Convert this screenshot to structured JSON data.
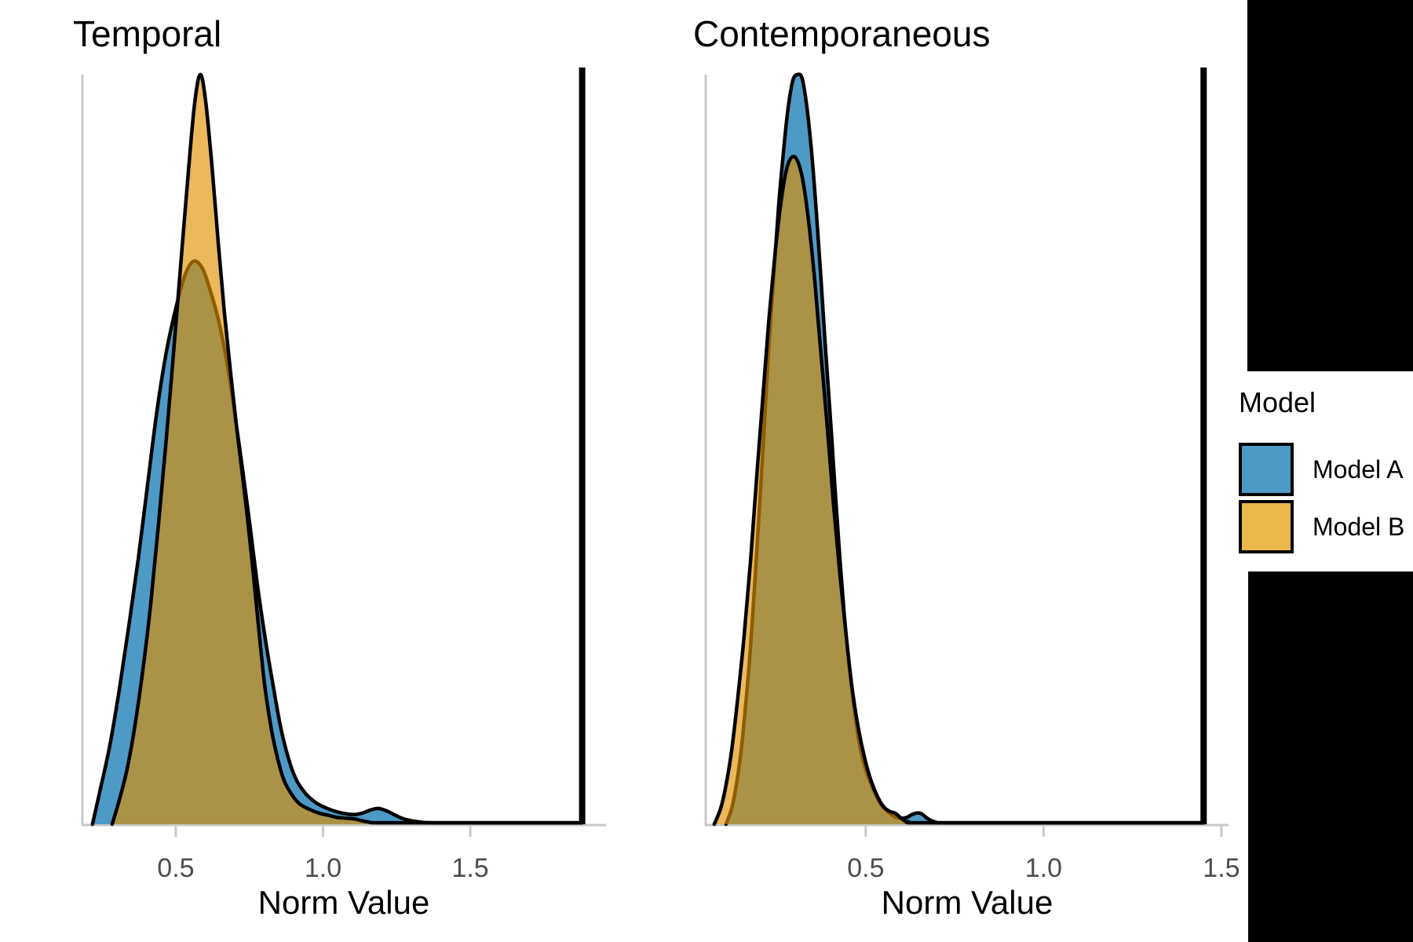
{
  "page": {
    "background": "#FFFFFF"
  },
  "legend": {
    "title": "Model",
    "items": [
      {
        "label": "Model A",
        "color": "#4D9AC6"
      },
      {
        "label": "Model B",
        "color": "#EBB84C"
      }
    ]
  },
  "style": {
    "axis_line_color": "#C9C9C9",
    "tick_label_color": "#4D4D4D",
    "density_outline_color": "#000000",
    "vline_color": "#000000"
  },
  "chart_data": [
    {
      "type": "area",
      "title": "Temporal",
      "xlabel": "Norm Value",
      "x_ticks": [
        "0.5",
        "1.0",
        "1.5"
      ],
      "x_tick_values": [
        0.5,
        1.0,
        1.5
      ],
      "x_range": [
        0.183,
        1.961
      ],
      "ylim": [
        0,
        1
      ],
      "grid": false,
      "legend_position": "right",
      "vline_x": 1.88,
      "series": [
        {
          "name": "Model A",
          "fill": "#4D9AC6",
          "fill_opacity": 1,
          "points": [
            [
              0.217,
              0
            ],
            [
              0.244,
              0.047
            ],
            [
              0.276,
              0.105
            ],
            [
              0.308,
              0.179
            ],
            [
              0.34,
              0.263
            ],
            [
              0.372,
              0.352
            ],
            [
              0.404,
              0.452
            ],
            [
              0.436,
              0.551
            ],
            [
              0.468,
              0.63
            ],
            [
              0.5,
              0.688
            ],
            [
              0.532,
              0.733
            ],
            [
              0.561,
              0.751
            ],
            [
              0.591,
              0.741
            ],
            [
              0.617,
              0.712
            ],
            [
              0.644,
              0.674
            ],
            [
              0.671,
              0.622
            ],
            [
              0.697,
              0.557
            ],
            [
              0.724,
              0.481
            ],
            [
              0.751,
              0.401
            ],
            [
              0.777,
              0.32
            ],
            [
              0.804,
              0.247
            ],
            [
              0.831,
              0.184
            ],
            [
              0.857,
              0.128
            ],
            [
              0.884,
              0.086
            ],
            [
              0.911,
              0.058
            ],
            [
              0.943,
              0.04
            ],
            [
              0.975,
              0.029
            ],
            [
              1.009,
              0.022
            ],
            [
              1.044,
              0.017
            ],
            [
              1.076,
              0.014
            ],
            [
              1.108,
              0.013
            ],
            [
              1.135,
              0.015
            ],
            [
              1.161,
              0.019
            ],
            [
              1.188,
              0.021
            ],
            [
              1.215,
              0.018
            ],
            [
              1.241,
              0.013
            ],
            [
              1.268,
              0.008
            ],
            [
              1.295,
              0.005
            ],
            [
              1.329,
              0.003
            ],
            [
              1.369,
              0.002
            ],
            [
              1.55,
              0.002
            ],
            [
              1.88,
              0.002
            ]
          ]
        },
        {
          "name": "Model B",
          "fill": "rgb(224,144,0)",
          "fill_opacity": 0.64,
          "points": [
            [
              0.284,
              0
            ],
            [
              0.308,
              0.032
            ],
            [
              0.335,
              0.074
            ],
            [
              0.361,
              0.131
            ],
            [
              0.388,
              0.205
            ],
            [
              0.415,
              0.294
            ],
            [
              0.441,
              0.399
            ],
            [
              0.468,
              0.515
            ],
            [
              0.495,
              0.641
            ],
            [
              0.521,
              0.767
            ],
            [
              0.543,
              0.872
            ],
            [
              0.564,
              0.961
            ],
            [
              0.583,
              1.0
            ],
            [
              0.601,
              0.966
            ],
            [
              0.623,
              0.877
            ],
            [
              0.644,
              0.777
            ],
            [
              0.665,
              0.683
            ],
            [
              0.687,
              0.599
            ],
            [
              0.708,
              0.525
            ],
            [
              0.724,
              0.473
            ],
            [
              0.74,
              0.42
            ],
            [
              0.756,
              0.362
            ],
            [
              0.772,
              0.299
            ],
            [
              0.788,
              0.236
            ],
            [
              0.804,
              0.179
            ],
            [
              0.825,
              0.126
            ],
            [
              0.847,
              0.086
            ],
            [
              0.868,
              0.058
            ],
            [
              0.895,
              0.039
            ],
            [
              0.921,
              0.027
            ],
            [
              0.953,
              0.02
            ],
            [
              0.985,
              0.015
            ],
            [
              1.017,
              0.012
            ],
            [
              1.049,
              0.009
            ],
            [
              1.081,
              0.008
            ],
            [
              1.108,
              0.007
            ],
            [
              1.129,
              0.005
            ],
            [
              1.156,
              0.003
            ],
            [
              1.2,
              0.002
            ],
            [
              1.55,
              0.002
            ],
            [
              1.88,
              0.002
            ]
          ]
        }
      ]
    },
    {
      "type": "area",
      "title": "Contemporaneous",
      "xlabel": "Norm Value",
      "x_ticks": [
        "0.5",
        "1.0",
        "1.5"
      ],
      "x_tick_values": [
        0.5,
        1.0,
        1.5
      ],
      "x_range": [
        0.05,
        1.52
      ],
      "ylim": [
        0,
        1
      ],
      "grid": false,
      "legend_position": "right",
      "vline_x": 1.45,
      "series": [
        {
          "name": "Model A",
          "fill": "#4D9AC6",
          "fill_opacity": 1,
          "points": [
            [
              0.107,
              0
            ],
            [
              0.123,
              0.021
            ],
            [
              0.136,
              0.052
            ],
            [
              0.149,
              0.096
            ],
            [
              0.162,
              0.157
            ],
            [
              0.176,
              0.236
            ],
            [
              0.189,
              0.33
            ],
            [
              0.202,
              0.429
            ],
            [
              0.215,
              0.534
            ],
            [
              0.228,
              0.639
            ],
            [
              0.242,
              0.738
            ],
            [
              0.255,
              0.825
            ],
            [
              0.268,
              0.894
            ],
            [
              0.281,
              0.953
            ],
            [
              0.295,
              0.992
            ],
            [
              0.308,
              1.0
            ],
            [
              0.321,
              0.995
            ],
            [
              0.334,
              0.958
            ],
            [
              0.348,
              0.895
            ],
            [
              0.361,
              0.817
            ],
            [
              0.374,
              0.728
            ],
            [
              0.387,
              0.633
            ],
            [
              0.401,
              0.539
            ],
            [
              0.414,
              0.445
            ],
            [
              0.427,
              0.356
            ],
            [
              0.44,
              0.277
            ],
            [
              0.454,
              0.209
            ],
            [
              0.467,
              0.155
            ],
            [
              0.48,
              0.113
            ],
            [
              0.493,
              0.084
            ],
            [
              0.511,
              0.058
            ],
            [
              0.529,
              0.038
            ],
            [
              0.546,
              0.024
            ],
            [
              0.564,
              0.016
            ],
            [
              0.582,
              0.01
            ],
            [
              0.599,
              0.008
            ],
            [
              0.615,
              0.009
            ],
            [
              0.63,
              0.013
            ],
            [
              0.643,
              0.015
            ],
            [
              0.657,
              0.014
            ],
            [
              0.67,
              0.009
            ],
            [
              0.683,
              0.005
            ],
            [
              0.696,
              0.003
            ],
            [
              0.714,
              0.002
            ],
            [
              0.9,
              0.002
            ],
            [
              1.45,
              0.002
            ]
          ]
        },
        {
          "name": "Model B",
          "fill": "rgb(224,144,0)",
          "fill_opacity": 0.64,
          "points": [
            [
              0.074,
              0
            ],
            [
              0.092,
              0.021
            ],
            [
              0.107,
              0.052
            ],
            [
              0.123,
              0.099
            ],
            [
              0.14,
              0.168
            ],
            [
              0.158,
              0.251
            ],
            [
              0.176,
              0.351
            ],
            [
              0.193,
              0.461
            ],
            [
              0.211,
              0.571
            ],
            [
              0.228,
              0.675
            ],
            [
              0.246,
              0.766
            ],
            [
              0.264,
              0.838
            ],
            [
              0.281,
              0.88
            ],
            [
              0.301,
              0.89
            ],
            [
              0.321,
              0.864
            ],
            [
              0.339,
              0.806
            ],
            [
              0.357,
              0.723
            ],
            [
              0.374,
              0.628
            ],
            [
              0.392,
              0.529
            ],
            [
              0.409,
              0.429
            ],
            [
              0.427,
              0.335
            ],
            [
              0.445,
              0.251
            ],
            [
              0.462,
              0.18
            ],
            [
              0.48,
              0.126
            ],
            [
              0.498,
              0.086
            ],
            [
              0.515,
              0.058
            ],
            [
              0.533,
              0.037
            ],
            [
              0.551,
              0.023
            ],
            [
              0.568,
              0.017
            ],
            [
              0.582,
              0.015
            ],
            [
              0.595,
              0.01
            ],
            [
              0.608,
              0.005
            ],
            [
              0.621,
              0.003
            ],
            [
              0.64,
              0.002
            ],
            [
              0.9,
              0.002
            ],
            [
              1.45,
              0.002
            ]
          ]
        }
      ]
    }
  ]
}
